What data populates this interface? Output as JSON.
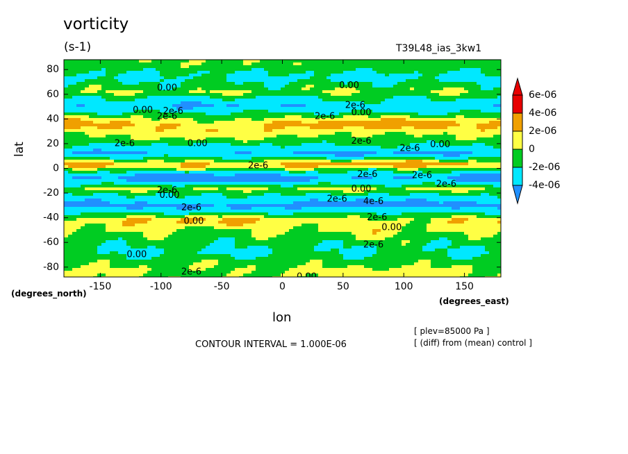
{
  "chart_data": {
    "type": "heatmap",
    "title": "vorticity",
    "units": "(s-1)",
    "case_label": "T39L48_ias_3kw1",
    "xlabel": "lon",
    "ylabel": "lat",
    "x_unit": "(degrees_east)",
    "y_unit": "(degrees_north)",
    "xlim": [
      -180,
      180
    ],
    "ylim": [
      -88,
      88
    ],
    "x_ticks": [
      "-150",
      "-100",
      "-50",
      "0",
      "50",
      "100",
      "150"
    ],
    "x_tick_values": [
      -150,
      -100,
      -50,
      0,
      50,
      100,
      150
    ],
    "y_ticks": [
      "80",
      "60",
      "40",
      "20",
      "0",
      "-20",
      "-40",
      "-60",
      "-80"
    ],
    "y_tick_values": [
      80,
      60,
      40,
      20,
      0,
      -20,
      -40,
      -60,
      -80
    ],
    "colorbar": {
      "labels": [
        "6e-06",
        "4e-06",
        "2e-06",
        "0",
        "-2e-06",
        "-4e-06"
      ],
      "colors": [
        "#e80000",
        "#f0a000",
        "#ffff44",
        "#00cc22",
        "#00e8ff",
        "#2090ff"
      ],
      "position": "right"
    },
    "bands": [
      {
        "lat": 84,
        "value": 5e-07
      },
      {
        "lat": 74,
        "value": -7e-07
      },
      {
        "lat": 62,
        "value": 8e-07
      },
      {
        "lat": 50,
        "value": -1.8e-06
      },
      {
        "lat": 36,
        "value": 2.4e-06
      },
      {
        "lat": 22,
        "value": 4e-07
      },
      {
        "lat": 12,
        "value": -2.2e-06
      },
      {
        "lat": 3,
        "value": 2.6e-06
      },
      {
        "lat": -8,
        "value": -3.2e-06
      },
      {
        "lat": -16,
        "value": 1.2e-06
      },
      {
        "lat": -30,
        "value": -2.6e-06
      },
      {
        "lat": -42,
        "value": 1.8e-06
      },
      {
        "lat": -55,
        "value": 6e-07
      },
      {
        "lat": -68,
        "value": -4e-07
      },
      {
        "lat": -82,
        "value": 1e-06
      }
    ],
    "contour_interval_text": "CONTOUR INTERVAL = 1.000E-06",
    "contour_labels": [
      {
        "text": "0.00",
        "lon": -95,
        "lat": 65
      },
      {
        "text": "0.00",
        "lon": 55,
        "lat": 67
      },
      {
        "text": "0.00",
        "lon": -115,
        "lat": 47
      },
      {
        "text": "2e-6",
        "lon": -90,
        "lat": 46
      },
      {
        "text": "2e-6",
        "lon": -95,
        "lat": 42
      },
      {
        "text": "2e-6",
        "lon": 60,
        "lat": 51
      },
      {
        "text": "2e-6",
        "lon": 35,
        "lat": 42
      },
      {
        "text": "0.00",
        "lon": 65,
        "lat": 45
      },
      {
        "text": "2e-6",
        "lon": -130,
        "lat": 20
      },
      {
        "text": "0.00",
        "lon": -70,
        "lat": 20
      },
      {
        "text": "2e-6",
        "lon": 65,
        "lat": 22
      },
      {
        "text": "2e-6",
        "lon": 105,
        "lat": 16
      },
      {
        "text": "0.00",
        "lon": 130,
        "lat": 19
      },
      {
        "text": "2e-6",
        "lon": -20,
        "lat": 2
      },
      {
        "text": "2e-6",
        "lon": 70,
        "lat": -5
      },
      {
        "text": "2e-6",
        "lon": 115,
        "lat": -6
      },
      {
        "text": "0.00",
        "lon": 65,
        "lat": -17
      },
      {
        "text": "2e-6",
        "lon": 135,
        "lat": -13
      },
      {
        "text": "2e-6",
        "lon": -95,
        "lat": -18
      },
      {
        "text": "0.00",
        "lon": -93,
        "lat": -22
      },
      {
        "text": "2e-6",
        "lon": -75,
        "lat": -32
      },
      {
        "text": "2e-6",
        "lon": 45,
        "lat": -25
      },
      {
        "text": "4e-6",
        "lon": 75,
        "lat": -27
      },
      {
        "text": "2e-6",
        "lon": 78,
        "lat": -40
      },
      {
        "text": "0.00",
        "lon": -73,
        "lat": -43
      },
      {
        "text": "0.00",
        "lon": 90,
        "lat": -48
      },
      {
        "text": "2e-6",
        "lon": 75,
        "lat": -62
      },
      {
        "text": "0.00",
        "lon": -120,
        "lat": -70
      },
      {
        "text": "2e-6",
        "lon": -75,
        "lat": -84
      },
      {
        "text": "0.00",
        "lon": 20,
        "lat": -88
      }
    ]
  },
  "notes": [
    "[ plev=85000 Pa ]",
    "[ (diff) from (mean) control ]"
  ]
}
